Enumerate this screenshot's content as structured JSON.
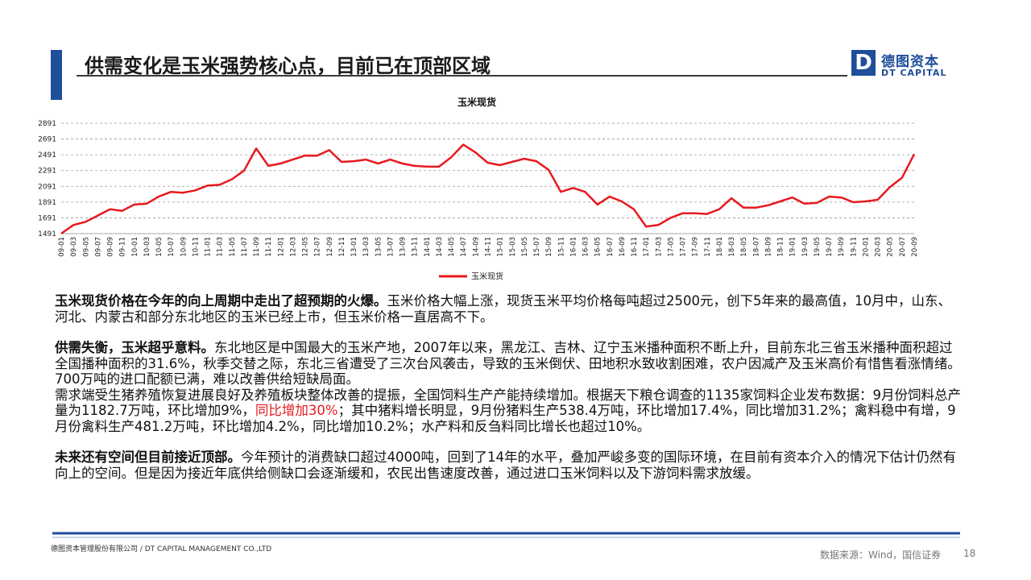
{
  "header": {
    "title": "供需变化是玉米强势核心点，目前已在顶部区域"
  },
  "logo": {
    "name": "德图资本",
    "sub": "DT CAPITAL",
    "mark": "D"
  },
  "chart_data": {
    "type": "line",
    "title": "玉米现货",
    "categories": [
      "09-01",
      "09-03",
      "09-05",
      "09-07",
      "09-09",
      "09-11",
      "10-01",
      "10-03",
      "10-05",
      "10-07",
      "10-09",
      "10-11",
      "11-01",
      "11-03",
      "11-05",
      "11-07",
      "11-09",
      "11-11",
      "12-01",
      "12-03",
      "12-05",
      "12-07",
      "12-09",
      "12-11",
      "13-01",
      "13-03",
      "13-05",
      "13-07",
      "13-09",
      "13-11",
      "14-01",
      "14-03",
      "14-05",
      "14-07",
      "14-09",
      "14-11",
      "15-01",
      "15-03",
      "15-05",
      "15-07",
      "15-09",
      "15-11",
      "16-01",
      "16-03",
      "16-05",
      "16-07",
      "16-09",
      "16-11",
      "17-01",
      "17-03",
      "17-05",
      "17-07",
      "17-09",
      "17-11",
      "18-01",
      "18-03",
      "18-05",
      "18-07",
      "18-09",
      "18-11",
      "19-01",
      "19-03",
      "19-05",
      "19-07",
      "19-09",
      "19-11",
      "20-01",
      "20-03",
      "20-05",
      "20-07",
      "20-09"
    ],
    "series": [
      {
        "name": "玉米现货",
        "color": "#e8191f",
        "values": [
          1491,
          1600,
          1640,
          1720,
          1800,
          1780,
          1860,
          1870,
          1960,
          2020,
          2010,
          2040,
          2100,
          2110,
          2180,
          2290,
          2570,
          2350,
          2380,
          2430,
          2480,
          2480,
          2550,
          2400,
          2410,
          2430,
          2380,
          2430,
          2380,
          2350,
          2340,
          2340,
          2460,
          2620,
          2520,
          2390,
          2360,
          2400,
          2440,
          2410,
          2300,
          2020,
          2070,
          2020,
          1860,
          1960,
          1900,
          1800,
          1580,
          1600,
          1690,
          1750,
          1750,
          1740,
          1800,
          1940,
          1820,
          1820,
          1850,
          1900,
          1950,
          1870,
          1880,
          1960,
          1950,
          1890,
          1900,
          1920,
          2080,
          2200,
          2500
        ]
      }
    ],
    "ylim": [
      1491,
      2891
    ],
    "yticks": [
      1491,
      1691,
      1891,
      2091,
      2291,
      2491,
      2691,
      2891
    ],
    "grid": true,
    "legend": "bottom"
  },
  "paragraphs": [
    [
      {
        "text": "玉米现货价格在今年的向上周期中走出了超预期的火爆。",
        "bold": true
      },
      {
        "text": "玉米价格大幅上涨，现货玉米平均价格每吨超过2500元，创下5年来的最高值，10月中，山东、河北、内蒙古和部分东北地区的玉米已经上市，但玉米价格一直居高不下。"
      }
    ],
    [
      {
        "text": "供需失衡，玉米超乎意料。",
        "bold": true
      },
      {
        "text": "东北地区是中国最大的玉米产地，2007年以来，黑龙江、吉林、辽宁玉米播种面积不断上升，目前东北三省玉米播种面积超过全国播种面积的31.6%，秋季交替之际，东北三省遭受了三次台风袭击，导致的玉米倒伏、田地积水致收割困难，农户因减产及玉米高价有惜售看涨情绪。700万吨的进口配额已满，难以改善供给短缺局面。"
      }
    ],
    [
      {
        "text": "需求端受生猪养殖恢复进展良好及养殖板块整体改善的提振，全国饲料生产产能持续增加。根据天下粮仓调查的1135家饲料企业发布数据：9月份饲料总产量为1182.7万吨，环比增加9%，"
      },
      {
        "text": "同比增加30%",
        "color": "#e8191f"
      },
      {
        "text": "；其中猪料增长明显，9月份猪料生产538.4万吨，环比增加17.4%，同比增加31.2%；禽料稳中有增，9月份禽料生产481.2万吨，环比增加4.2%，同比增加10.2%；水产料和反刍料同比增长也超过10%。"
      }
    ],
    [
      {
        "text": "未来还有空间但目前接近顶部。",
        "bold": true
      },
      {
        "text": "今年预计的消费缺口超过4000吨，回到了14年的水平，叠加严峻多变的国际环境，在目前有资本介入的情况下估计仍然有向上的空间。但是因为接近年底供给侧缺口会逐渐缓和，农民出售速度改善，通过进口玉米饲料以及下游饲料需求放缓。"
      }
    ]
  ],
  "footer": {
    "company": "德图资本管理股份有限公司 / DT CAPITAL MANAGEMENT CO.,LTD",
    "source": "数据来源：Wind，国信证券",
    "page": "18"
  }
}
